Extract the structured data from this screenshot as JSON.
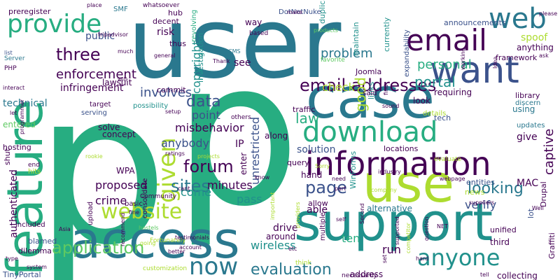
{
  "palette": {
    "background": "#ffffff",
    "c1": "#440154",
    "c2": "#3b528b",
    "c3": "#2a788e",
    "c4": "#21918c",
    "c5": "#27ad81",
    "c6": "#5ec962",
    "c7": "#addc30"
  },
  "words": [
    "p",
    "user",
    "p",
    "feature",
    "case",
    "support",
    "access",
    "use",
    "want",
    "information",
    "download",
    "email",
    "web",
    "provide",
    "website",
    "email addresses",
    "given",
    "anyone",
    "now",
    "three",
    "application",
    "forum",
    "sites",
    "page",
    "data",
    "looking",
    "evaluation",
    "portal",
    "personal",
    "enforcement",
    "copyright",
    "problem",
    "involves",
    "misbehavior",
    "unrestricted",
    "law",
    "check",
    "good",
    "captive",
    "point",
    "anybody",
    "solution",
    "verify",
    "proposed",
    "crime",
    "minutes",
    "come",
    "pass",
    "run",
    "ten",
    "wireless",
    "drive",
    "able",
    "alternative",
    "risk",
    "infringement",
    "lawsuit",
    "public",
    "technical",
    "authenticated",
    "entered",
    "concept",
    "solve",
    "WPA",
    "IP",
    "MAC",
    "along",
    "enter",
    "give",
    "spoof",
    "requiring",
    "anything",
    "announcements",
    "duplicate",
    "DotNetNuke",
    "preregister",
    "hub",
    "decent",
    "thus",
    "investigation",
    "revolving",
    "commit",
    "see",
    "tech",
    "links",
    "said",
    "updates",
    "library",
    "using",
    "look",
    "possibility",
    "serving",
    "target",
    "query",
    "hand",
    "locations",
    "traffic",
    "around",
    "blamed",
    "dilemma",
    "TinyPortal",
    "collecting",
    "address",
    "third",
    "lot",
    "unified",
    "Graffiti",
    "news",
    "entities",
    "Drupal",
    "WinForms",
    "maintain",
    "currently",
    "Joomla",
    "framework",
    "expandability",
    "Server",
    "PHP",
    "list",
    "SMF",
    "whatsoever",
    "tripadvisor",
    "place",
    "make",
    "products",
    "favorite",
    "based",
    "way",
    "CMS",
    "general",
    "details",
    "discern",
    "setup",
    "others",
    "sound",
    "ratings",
    "hosting",
    "end",
    "shut",
    "hits",
    "included",
    "consolidate",
    "upload",
    "basic",
    "Community",
    "fine",
    "hostels",
    "cant",
    "know",
    "need",
    "part",
    "allow",
    "self",
    "multiple",
    "important",
    "Fortunately",
    "customization",
    "system",
    "type",
    "Asia",
    "better",
    "account",
    "going",
    "recommend",
    "think",
    "etc",
    "NET",
    "question",
    "Well",
    "tell",
    "hard",
    "necessarily",
    "set",
    "supported",
    "suppliers",
    "company",
    "evaluate",
    "webpage",
    "industry",
    "find",
    "interact",
    "let",
    "programmer",
    "Sorry",
    "rookie",
    "projects",
    "testimonials",
    "providers",
    "Second",
    "competitor",
    "working",
    "Idea",
    "ask",
    "please",
    "much",
    "Thank",
    "will",
    "possible"
  ]
}
